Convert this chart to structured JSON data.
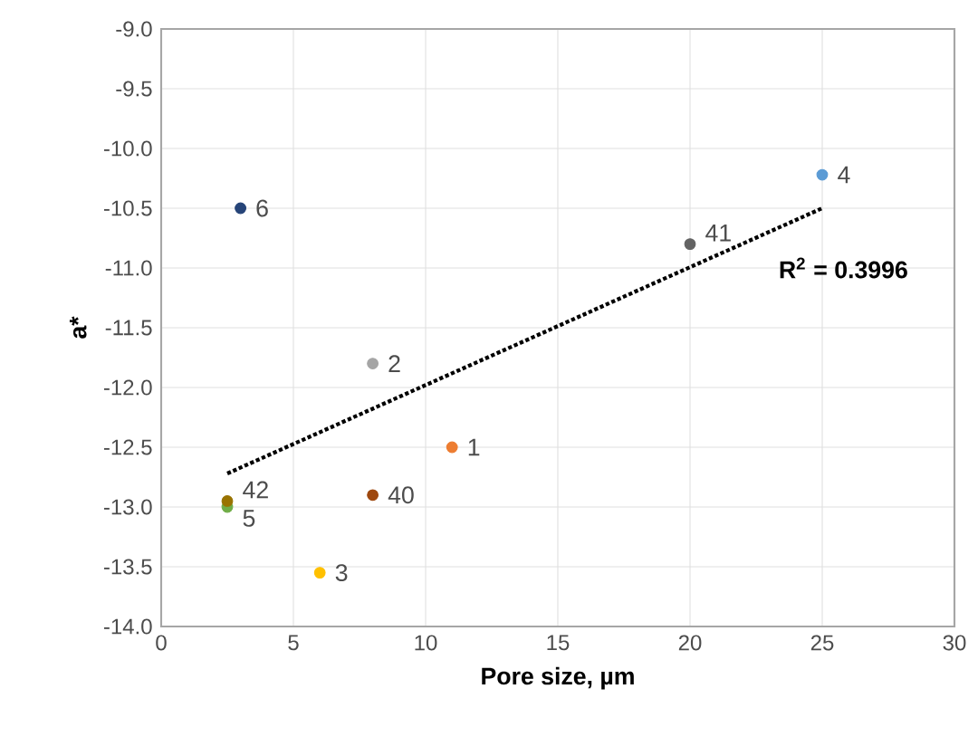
{
  "chart_data": {
    "type": "scatter",
    "xlabel": "Pore size, µm",
    "ylabel": "a*",
    "xlim": [
      0,
      30
    ],
    "ylim": [
      -14,
      -9
    ],
    "xticks": [
      0,
      5,
      10,
      15,
      20,
      25,
      30
    ],
    "yticks": [
      {
        "value": -14,
        "label": "-14.0"
      },
      {
        "value": -13.5,
        "label": "-13.5"
      },
      {
        "value": -13,
        "label": "-13.0"
      },
      {
        "value": -12.5,
        "label": "-12.5"
      },
      {
        "value": -12,
        "label": "-12.0"
      },
      {
        "value": -11.5,
        "label": "-11.5"
      },
      {
        "value": -11,
        "label": "-11.0"
      },
      {
        "value": -10.5,
        "label": "-10.5"
      },
      {
        "value": -10,
        "label": "-10.0"
      },
      {
        "value": -9.5,
        "label": "-9.5"
      },
      {
        "value": -9,
        "label": "-9.0"
      }
    ],
    "grid": true,
    "legend": false,
    "annotations": [
      "R$^{2}$ = 0.3996"
    ],
    "series": [
      {
        "name": "1",
        "marker": "circle",
        "color": "#ed7d31",
        "x": [
          11
        ],
        "values": [
          -12.5
        ]
      },
      {
        "name": "2",
        "marker": "circle",
        "color": "#a5a5a5",
        "x": [
          8
        ],
        "values": [
          -11.8
        ]
      },
      {
        "name": "3",
        "marker": "circle",
        "color": "#ffc000",
        "x": [
          6
        ],
        "values": [
          -13.55
        ]
      },
      {
        "name": "4",
        "marker": "circle",
        "color": "#5b9bd5",
        "x": [
          25
        ],
        "values": [
          -10.22
        ]
      },
      {
        "name": "5",
        "marker": "circle",
        "color": "#70ad47",
        "x": [
          2.5
        ],
        "values": [
          -13.0
        ]
      },
      {
        "name": "6",
        "marker": "circle",
        "color": "#264478",
        "x": [
          3
        ],
        "values": [
          -10.5
        ]
      },
      {
        "name": "40",
        "marker": "circle",
        "color": "#9e480e",
        "x": [
          8
        ],
        "values": [
          -12.9
        ]
      },
      {
        "name": "41",
        "marker": "circle",
        "color": "#636363",
        "x": [
          20
        ],
        "values": [
          -10.8
        ]
      },
      {
        "name": "42",
        "marker": "circle",
        "color": "#997300",
        "x": [
          2.5
        ],
        "values": [
          -12.95
        ]
      },
      {
        "type": "line",
        "marker": "none",
        "line_style": "dotted",
        "color": "#000000",
        "x": [
          2.5,
          25
        ],
        "values": [
          -12.72,
          -10.5
        ]
      }
    ]
  }
}
